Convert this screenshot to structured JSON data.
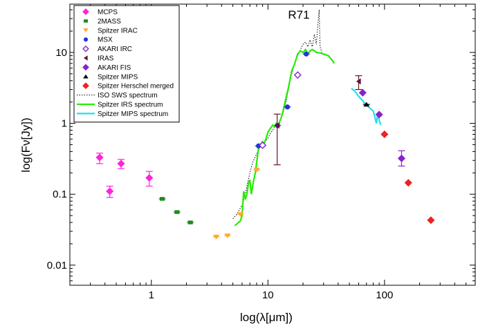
{
  "chart_data": {
    "type": "scatter",
    "title": "R71",
    "xlabel": "log(λ[μm])",
    "ylabel": "log(Fν[Jy])",
    "xscale": "log",
    "yscale": "log",
    "xlim": [
      0.2,
      600
    ],
    "ylim": [
      0.0052,
      48
    ],
    "x_ticks": [
      {
        "value": 1,
        "label": "1"
      },
      {
        "value": 10,
        "label": "10"
      },
      {
        "value": 100,
        "label": "100"
      }
    ],
    "y_ticks": [
      {
        "value": 0.01,
        "label": "0.01"
      },
      {
        "value": 0.1,
        "label": "0.1"
      },
      {
        "value": 1,
        "label": "1"
      },
      {
        "value": 10,
        "label": "10"
      }
    ],
    "grid": false,
    "legend_position": "top-left",
    "colors": {
      "magenta": "#ff22dd",
      "green": "#228822",
      "orange": "#ffaa22",
      "blue": "#2233dd",
      "purple": "#8833cc",
      "maroon": "#661133",
      "violet": "#8822cc",
      "black": "#000000",
      "red": "#ee2222",
      "lime": "#22ee00",
      "cyan": "#22ddee"
    },
    "series": [
      {
        "name": "MCPS",
        "marker": "diamond",
        "color": "#ff22dd",
        "points": [
          {
            "x": 0.36,
            "y": 0.33,
            "err": [
              0.27,
              0.38
            ]
          },
          {
            "x": 0.44,
            "y": 0.11,
            "err": [
              0.09,
              0.13
            ]
          },
          {
            "x": 0.55,
            "y": 0.27,
            "err": [
              0.23,
              0.31
            ]
          },
          {
            "x": 0.96,
            "y": 0.17,
            "err": [
              0.13,
              0.21
            ]
          }
        ]
      },
      {
        "name": "2MASS",
        "marker": "square",
        "color": "#228822",
        "points": [
          {
            "x": 1.24,
            "y": 0.086
          },
          {
            "x": 1.66,
            "y": 0.056
          },
          {
            "x": 2.16,
            "y": 0.04
          }
        ]
      },
      {
        "name": "Spitzer IRAC",
        "marker": "triangle-down",
        "color": "#ffaa22",
        "points": [
          {
            "x": 3.6,
            "y": 0.025
          },
          {
            "x": 4.5,
            "y": 0.026
          },
          {
            "x": 5.8,
            "y": 0.052
          },
          {
            "x": 8.0,
            "y": 0.22
          }
        ]
      },
      {
        "name": "MSX",
        "marker": "circle",
        "color": "#2233dd",
        "points": [
          {
            "x": 8.3,
            "y": 0.48
          },
          {
            "x": 12.1,
            "y": 0.93
          },
          {
            "x": 14.7,
            "y": 1.7
          },
          {
            "x": 21.3,
            "y": 9.5
          }
        ]
      },
      {
        "name": "AKARI IRC",
        "marker": "diamond-open",
        "color": "#8833cc",
        "points": [
          {
            "x": 9.0,
            "y": 0.49
          },
          {
            "x": 18.0,
            "y": 4.8
          }
        ]
      },
      {
        "name": "IRAS",
        "marker": "triangle-left",
        "color": "#661133",
        "points": [
          {
            "x": 12.0,
            "y": 0.93,
            "err": [
              0.26,
              1.35
            ]
          },
          {
            "x": 60.0,
            "y": 3.9,
            "err": [
              3.0,
              4.7
            ]
          }
        ]
      },
      {
        "name": "AKARI FIS",
        "marker": "diamond",
        "color": "#8822cc",
        "points": [
          {
            "x": 65.0,
            "y": 2.7
          },
          {
            "x": 90.0,
            "y": 1.33
          },
          {
            "x": 140.0,
            "y": 0.32,
            "err": [
              0.25,
              0.41
            ]
          }
        ]
      },
      {
        "name": "Spitzer MIPS",
        "marker": "triangle-up",
        "color": "#000000",
        "points": [
          {
            "x": 70.0,
            "y": 1.85
          }
        ]
      },
      {
        "name": "Spitzer Herschel merged",
        "marker": "diamond",
        "color": "#ee2222",
        "points": [
          {
            "x": 100.0,
            "y": 0.7
          },
          {
            "x": 160.0,
            "y": 0.145
          },
          {
            "x": 250.0,
            "y": 0.043
          }
        ]
      }
    ],
    "spectra": [
      {
        "name": "ISO SWS spectrum",
        "style": "dotted",
        "color": "#000000",
        "x": [
          5.0,
          5.3,
          5.6,
          6.0,
          6.3,
          6.6,
          7.0,
          7.4,
          7.8,
          8.2,
          8.6,
          9.0,
          9.5,
          10.0,
          10.5,
          11.0,
          11.5,
          12.0,
          12.8,
          13.5,
          14.3,
          15.0,
          16.0,
          17.0,
          18.0,
          19.0,
          20.0,
          21.0,
          22.0,
          23.0,
          24.0,
          25.0,
          26.0,
          27.0,
          27.5,
          28.0,
          29.0
        ],
        "y": [
          0.045,
          0.05,
          0.058,
          0.07,
          0.09,
          0.13,
          0.2,
          0.28,
          0.34,
          0.4,
          0.48,
          0.52,
          0.56,
          0.62,
          0.72,
          0.8,
          0.9,
          0.95,
          1.1,
          1.4,
          2.0,
          3.0,
          5.0,
          7.0,
          9.0,
          11.0,
          13.0,
          14.0,
          12.0,
          15.0,
          12.0,
          18.0,
          13.0,
          28.0,
          40.0,
          12.0,
          10.0
        ]
      },
      {
        "name": "Spitzer IRS spectrum",
        "style": "solid",
        "color": "#22ee00",
        "x": [
          5.2,
          5.4,
          5.6,
          5.8,
          6.0,
          6.2,
          6.4,
          6.6,
          6.8,
          7.0,
          7.2,
          7.5,
          7.8,
          8.0,
          8.3,
          8.6,
          9.0,
          9.3,
          9.6,
          10.0,
          10.5,
          11.0,
          11.3,
          11.8,
          12.3,
          13.0,
          13.5,
          14.0,
          15.0,
          16.0,
          17.0,
          18.0,
          19.0,
          20.0,
          21.0,
          22.0,
          23.0,
          24.0,
          25.0,
          26.0,
          28.0,
          30.0,
          33.0,
          36.0,
          37.0
        ],
        "y": [
          0.036,
          0.038,
          0.04,
          0.042,
          0.05,
          0.11,
          0.085,
          0.1,
          0.14,
          0.16,
          0.1,
          0.15,
          0.2,
          0.28,
          0.45,
          0.5,
          0.55,
          0.52,
          0.6,
          0.75,
          0.85,
          0.95,
          0.9,
          1.0,
          0.95,
          1.2,
          1.5,
          2.0,
          3.2,
          5.5,
          7.0,
          9.5,
          10.5,
          10.0,
          11.0,
          9.5,
          10.5,
          11.0,
          10.5,
          10.0,
          9.8,
          9.5,
          9.0,
          7.5,
          7.0
        ]
      },
      {
        "name": "Spitzer MIPS spectrum",
        "style": "solid",
        "color": "#22ddee",
        "x": [
          52,
          55,
          58,
          60,
          63,
          65,
          67,
          70,
          73,
          76,
          80,
          83,
          85,
          88,
          90,
          93
        ],
        "y": [
          3.1,
          2.9,
          2.6,
          2.4,
          2.2,
          2.1,
          1.95,
          1.85,
          1.7,
          1.6,
          1.5,
          1.2,
          1.0,
          1.4,
          1.1,
          0.95
        ]
      }
    ]
  }
}
